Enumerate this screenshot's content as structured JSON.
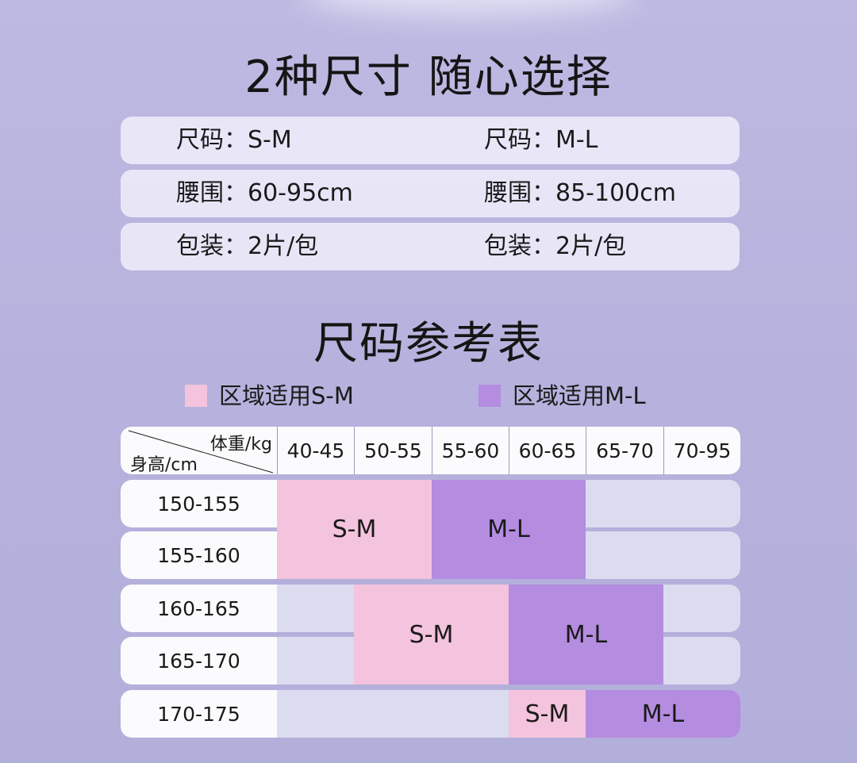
{
  "title": "2种尺寸 随心选择",
  "specs": [
    {
      "left": "尺码：S-M",
      "right": "尺码：M-L"
    },
    {
      "left": "腰围：60-95cm",
      "right": "腰围：85-100cm"
    },
    {
      "left": "包装：2片/包",
      "right": "包装：2片/包"
    }
  ],
  "chart_title": "尺码参考表",
  "legend": {
    "sm": {
      "label": "区域适用S-M",
      "color": "#f4c3dd"
    },
    "ml": {
      "label": "区域适用M-L",
      "color": "#b48ce0"
    }
  },
  "table": {
    "corner_weight": "体重/kg",
    "corner_height": "身高/cm",
    "columns": [
      "40-45",
      "50-55",
      "55-60",
      "60-65",
      "65-70",
      "70-95"
    ],
    "rows": [
      "150-155",
      "155-160",
      "160-165",
      "165-170",
      "170-175"
    ],
    "blocks": [
      {
        "size": "S-M",
        "rows": [
          0,
          1
        ],
        "cols": [
          0,
          1
        ]
      },
      {
        "size": "M-L",
        "rows": [
          0,
          1
        ],
        "cols": [
          2,
          3
        ]
      },
      {
        "size": "S-M",
        "rows": [
          2,
          3
        ],
        "cols": [
          1,
          2
        ]
      },
      {
        "size": "M-L",
        "rows": [
          2,
          3
        ],
        "cols": [
          3,
          4
        ]
      },
      {
        "size": "S-M",
        "rows": [
          4,
          4
        ],
        "cols": [
          3,
          3
        ]
      },
      {
        "size": "M-L",
        "rows": [
          4,
          4
        ],
        "cols": [
          4,
          5
        ]
      }
    ]
  }
}
